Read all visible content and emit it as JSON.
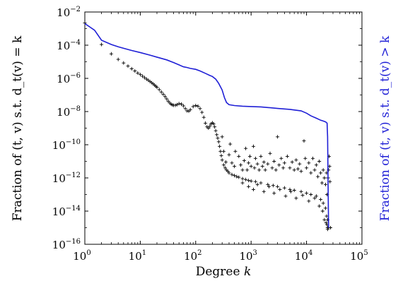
{
  "chart_data": {
    "type": "scatter",
    "title": "",
    "xlabel": "Degree",
    "xlabel_var": "k",
    "ylabel_left": "Fraction of (t, v) s.t. d_t(v) = k",
    "ylabel_right": "Fraction of (t, v) s.t. d_t(v) > k",
    "x_scale": "log",
    "y_scale": "log",
    "xlim": [
      1,
      100000
    ],
    "ylim": [
      1e-16,
      0.01
    ],
    "x_ticks": [
      {
        "base": "10",
        "exp": "0"
      },
      {
        "base": "10",
        "exp": "1"
      },
      {
        "base": "10",
        "exp": "2"
      },
      {
        "base": "10",
        "exp": "3"
      },
      {
        "base": "10",
        "exp": "4"
      },
      {
        "base": "10",
        "exp": "5"
      }
    ],
    "y_ticks": [
      {
        "base": "10",
        "exp": "−16"
      },
      {
        "base": "10",
        "exp": "−14"
      },
      {
        "base": "10",
        "exp": "−12"
      },
      {
        "base": "10",
        "exp": "−10"
      },
      {
        "base": "10",
        "exp": "−8"
      },
      {
        "base": "10",
        "exp": "−6"
      },
      {
        "base": "10",
        "exp": "−4"
      },
      {
        "base": "10",
        "exp": "−2"
      }
    ],
    "grid": false,
    "legend": "none",
    "series": [
      {
        "kind": "scatter",
        "marker": "+",
        "color": "#000000",
        "points": [
          [
            1,
            0.0022
          ],
          [
            2,
            0.00011
          ],
          [
            3,
            3e-05
          ],
          [
            4,
            1.4e-05
          ],
          [
            5,
            8.5e-06
          ],
          [
            6,
            5.5e-06
          ],
          [
            7,
            3.8e-06
          ],
          [
            8,
            2.8e-06
          ],
          [
            9,
            2.1e-06
          ],
          [
            10,
            1.7e-06
          ],
          [
            11,
            1.35e-06
          ],
          [
            12,
            1.1e-06
          ],
          [
            13,
            9e-07
          ],
          [
            14,
            7.6e-07
          ],
          [
            15,
            6.4e-07
          ],
          [
            16,
            5.5e-07
          ],
          [
            17,
            4.7e-07
          ],
          [
            18,
            4e-07
          ],
          [
            19,
            3.4e-07
          ],
          [
            20,
            2.9e-07
          ],
          [
            22,
            2.1e-07
          ],
          [
            24,
            1.5e-07
          ],
          [
            26,
            1.1e-07
          ],
          [
            28,
            8e-08
          ],
          [
            30,
            5.8e-08
          ],
          [
            32,
            4.2e-08
          ],
          [
            34,
            3.3e-08
          ],
          [
            36,
            2.8e-08
          ],
          [
            38,
            2.5e-08
          ],
          [
            40,
            2.4e-08
          ],
          [
            43,
            2.4e-08
          ],
          [
            46,
            2.6e-08
          ],
          [
            50,
            3e-08
          ],
          [
            55,
            2.8e-08
          ],
          [
            60,
            2.2e-08
          ],
          [
            65,
            1.5e-08
          ],
          [
            70,
            1.1e-08
          ],
          [
            75,
            1.05e-08
          ],
          [
            80,
            1.3e-08
          ],
          [
            90,
            2e-08
          ],
          [
            100,
            2.3e-08
          ],
          [
            110,
            2.1e-08
          ],
          [
            120,
            1.5e-08
          ],
          [
            130,
            9e-09
          ],
          [
            140,
            4.5e-09
          ],
          [
            150,
            2e-09
          ],
          [
            160,
            1.2e-09
          ],
          [
            170,
            1e-09
          ],
          [
            180,
            1.3e-09
          ],
          [
            190,
            1.8e-09
          ],
          [
            200,
            2.1e-09
          ],
          [
            210,
            1.8e-09
          ],
          [
            220,
            1.2e-09
          ],
          [
            230,
            7e-10
          ],
          [
            240,
            4e-10
          ],
          [
            250,
            2.5e-10
          ],
          [
            260,
            1.5e-10
          ],
          [
            270,
            8e-11
          ],
          [
            280,
            4e-11
          ],
          [
            290,
            2.2e-11
          ],
          [
            300,
            1.2e-11
          ],
          [
            320,
            6e-12
          ],
          [
            340,
            4e-12
          ],
          [
            360,
            3e-12
          ],
          [
            380,
            2.5e-12
          ],
          [
            400,
            2e-12
          ],
          [
            450,
            1.6e-12
          ],
          [
            500,
            1.4e-12
          ],
          [
            550,
            1.2e-12
          ],
          [
            600,
            1.1e-12
          ],
          [
            700,
            9e-13
          ],
          [
            800,
            8e-13
          ],
          [
            900,
            7e-13
          ],
          [
            1000,
            6.5e-13
          ],
          [
            1200,
            6e-13
          ],
          [
            1500,
            5e-13
          ],
          [
            2000,
            4e-13
          ],
          [
            2500,
            3.5e-13
          ],
          [
            3000,
            3e-13
          ],
          [
            4000,
            2.5e-13
          ],
          [
            5000,
            2e-13
          ],
          [
            6000,
            1.8e-13
          ],
          [
            8000,
            1.5e-13
          ],
          [
            10000,
            1.2e-13
          ],
          [
            12000,
            1e-13
          ],
          [
            15000,
            8e-14
          ],
          [
            18000,
            5e-14
          ],
          [
            20000,
            3e-14
          ],
          [
            22000,
            1.5e-14
          ],
          [
            23000,
            5e-15
          ],
          [
            23500,
            1.5e-15
          ],
          [
            24000,
            1e-15
          ],
          [
            300,
            3e-10
          ],
          [
            320,
            4e-11
          ],
          [
            350,
            9e-12
          ],
          [
            400,
            2.5e-11
          ],
          [
            420,
            1.1e-10
          ],
          [
            450,
            8e-12
          ],
          [
            500,
            5e-12
          ],
          [
            520,
            4e-11
          ],
          [
            600,
            2e-11
          ],
          [
            650,
            6e-12
          ],
          [
            700,
            3e-12
          ],
          [
            750,
            1.1e-11
          ],
          [
            800,
            6e-11
          ],
          [
            850,
            3e-12
          ],
          [
            900,
            8e-12
          ],
          [
            950,
            2e-11
          ],
          [
            1000,
            5e-12
          ],
          [
            1100,
            8e-11
          ],
          [
            1150,
            4e-12
          ],
          [
            1200,
            1.5e-11
          ],
          [
            1300,
            7e-12
          ],
          [
            1400,
            3e-12
          ],
          [
            1500,
            2e-11
          ],
          [
            1600,
            5e-12
          ],
          [
            1700,
            9e-12
          ],
          [
            1800,
            3e-12
          ],
          [
            2000,
            7e-12
          ],
          [
            2200,
            3e-11
          ],
          [
            2400,
            4e-12
          ],
          [
            2600,
            1e-11
          ],
          [
            2800,
            3e-12
          ],
          [
            3000,
            3e-10
          ],
          [
            3200,
            6e-12
          ],
          [
            3500,
            1.5e-11
          ],
          [
            3800,
            4e-12
          ],
          [
            4000,
            8e-12
          ],
          [
            4500,
            2e-11
          ],
          [
            5000,
            4e-12
          ],
          [
            5500,
            9e-12
          ],
          [
            6000,
            3e-12
          ],
          [
            6500,
            1.2e-11
          ],
          [
            7000,
            3.5e-12
          ],
          [
            7500,
            7e-12
          ],
          [
            8000,
            2.5e-12
          ],
          [
            9000,
            1.7e-10
          ],
          [
            9500,
            1.5e-11
          ],
          [
            10000,
            4e-12
          ],
          [
            11000,
            8e-12
          ],
          [
            12000,
            2e-12
          ],
          [
            13000,
            1.5e-11
          ],
          [
            14000,
            3e-12
          ],
          [
            15000,
            6e-12
          ],
          [
            16000,
            1.2e-12
          ],
          [
            17000,
            1e-11
          ],
          [
            18000,
            2e-12
          ],
          [
            19000,
            5e-13
          ],
          [
            20000,
            3e-12
          ],
          [
            21000,
            1e-12
          ],
          [
            22000,
            4e-13
          ],
          [
            23000,
            2e-12
          ],
          [
            23500,
            1e-13
          ],
          [
            24000,
            3e-15
          ],
          [
            24500,
            1e-12
          ],
          [
            25000,
            3e-12
          ],
          [
            25500,
            2e-11
          ],
          [
            26000,
            5e-12
          ],
          [
            26500,
            6e-13
          ],
          [
            27000,
            1e-15
          ],
          [
            700,
            5e-13
          ],
          [
            900,
            3e-13
          ],
          [
            1100,
            2e-13
          ],
          [
            1300,
            4e-13
          ],
          [
            1700,
            1.5e-13
          ],
          [
            2100,
            3e-13
          ],
          [
            2600,
            1.2e-13
          ],
          [
            3300,
            2e-13
          ],
          [
            4200,
            8e-14
          ],
          [
            5200,
            1.5e-13
          ],
          [
            6500,
            6e-14
          ],
          [
            8500,
            9e-14
          ],
          [
            11000,
            4e-14
          ],
          [
            14000,
            6e-14
          ],
          [
            17000,
            2e-14
          ],
          [
            19500,
            1e-14
          ],
          [
            21000,
            3e-15
          ],
          [
            22500,
            2e-15
          ],
          [
            24000,
            8e-16
          ],
          [
            25000,
            1e-15
          ]
        ]
      },
      {
        "kind": "line",
        "color": "#1f1fd6",
        "axis": "right",
        "points": [
          [
            1,
            0.002
          ],
          [
            1.5,
            0.0008
          ],
          [
            2,
            0.0002
          ],
          [
            3,
            0.00011
          ],
          [
            4,
            8e-05
          ],
          [
            5,
            6.5e-05
          ],
          [
            7,
            4.8e-05
          ],
          [
            10,
            3.6e-05
          ],
          [
            15,
            2.5e-05
          ],
          [
            20,
            1.9e-05
          ],
          [
            30,
            1.3e-05
          ],
          [
            40,
            9e-06
          ],
          [
            50,
            6.5e-06
          ],
          [
            60,
            5e-06
          ],
          [
            70,
            4.5e-06
          ],
          [
            80,
            4e-06
          ],
          [
            100,
            3.5e-06
          ],
          [
            120,
            2.8e-06
          ],
          [
            150,
            2e-06
          ],
          [
            180,
            1.5e-06
          ],
          [
            200,
            1.3e-06
          ],
          [
            230,
            9e-07
          ],
          [
            260,
            5e-07
          ],
          [
            300,
            2e-07
          ],
          [
            330,
            7e-08
          ],
          [
            360,
            3.5e-08
          ],
          [
            400,
            2.6e-08
          ],
          [
            500,
            2.3e-08
          ],
          [
            700,
            2.1e-08
          ],
          [
            1000,
            2e-08
          ],
          [
            1500,
            1.9e-08
          ],
          [
            2000,
            1.75e-08
          ],
          [
            3000,
            1.55e-08
          ],
          [
            5000,
            1.35e-08
          ],
          [
            8000,
            1.1e-08
          ],
          [
            10000,
            8e-09
          ],
          [
            12000,
            5.5e-09
          ],
          [
            15000,
            4e-09
          ],
          [
            18000,
            3e-09
          ],
          [
            20000,
            2.7e-09
          ],
          [
            22000,
            2.4e-09
          ],
          [
            23500,
            2e-09
          ],
          [
            24000,
            3e-10
          ],
          [
            24500,
            4e-13
          ],
          [
            25000,
            1e-15
          ]
        ]
      }
    ]
  }
}
